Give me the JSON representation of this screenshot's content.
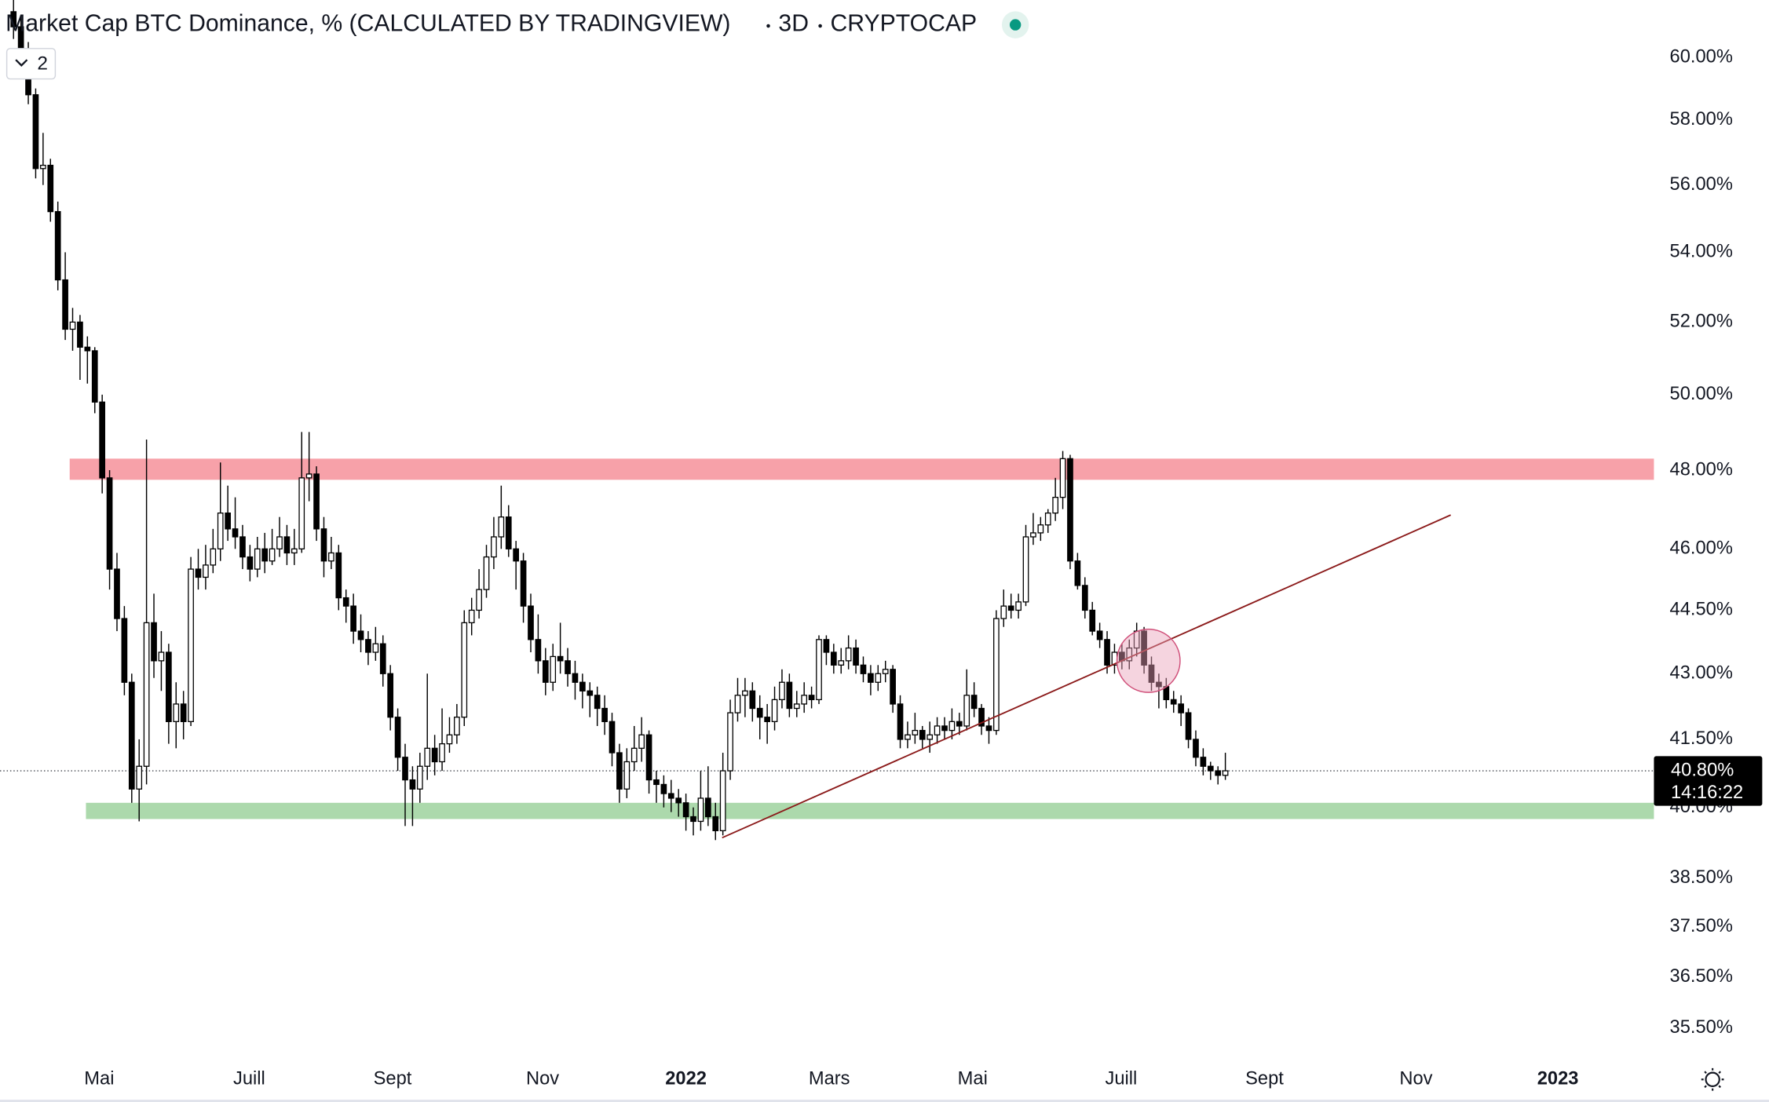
{
  "chart_data": {
    "type": "candlestick",
    "title": "Market Cap BTC Dominance, % (CALCULATED BY TRADINGVIEW)",
    "interval": "3D",
    "source": "CRYPTOCAP",
    "indicator_count": "2",
    "log_scale": true,
    "grid": false,
    "up_color": "#ffffff",
    "down_color": "#000000",
    "ylim": [
      34.89,
      61.89
    ],
    "yticks": [
      {
        "value": 60,
        "label": "60.00%"
      },
      {
        "value": 58,
        "label": "58.00%"
      },
      {
        "value": 56,
        "label": "56.00%"
      },
      {
        "value": 54,
        "label": "54.00%"
      },
      {
        "value": 52,
        "label": "52.00%"
      },
      {
        "value": 50,
        "label": "50.00%"
      },
      {
        "value": 48,
        "label": "48.00%"
      },
      {
        "value": 46,
        "label": "46.00%"
      },
      {
        "value": 44.5,
        "label": "44.50%"
      },
      {
        "value": 43,
        "label": "43.00%"
      },
      {
        "value": 41.5,
        "label": "41.50%"
      },
      {
        "value": 40,
        "label": "40.00%"
      },
      {
        "value": 38.5,
        "label": "38.50%"
      },
      {
        "value": 37.5,
        "label": "37.50%"
      },
      {
        "value": 36.5,
        "label": "36.50%"
      },
      {
        "value": 35.5,
        "label": "35.50%"
      }
    ],
    "xlim": [
      -1.83,
      222
    ],
    "xticks": [
      {
        "value": 11.6,
        "label": "Mai"
      },
      {
        "value": 31.9,
        "label": "Juill"
      },
      {
        "value": 51.3,
        "label": "Sept"
      },
      {
        "value": 71.6,
        "label": "Nov"
      },
      {
        "value": 91.0,
        "label": "2022",
        "major": true
      },
      {
        "value": 110.4,
        "label": "Mars"
      },
      {
        "value": 129.8,
        "label": "Mai"
      },
      {
        "value": 149.9,
        "label": "Juill"
      },
      {
        "value": 169.3,
        "label": "Sept"
      },
      {
        "value": 189.8,
        "label": "Nov"
      },
      {
        "value": 209.0,
        "label": "2023",
        "major": true
      }
    ],
    "ohlc": [
      [
        61.5,
        62,
        60.6,
        61.0
      ],
      [
        61.0,
        61.4,
        59.8,
        60.2
      ],
      [
        60.2,
        60.5,
        58.5,
        58.8
      ],
      [
        58.8,
        59.0,
        56.2,
        56.5
      ],
      [
        56.5,
        57.6,
        56.0,
        56.6
      ],
      [
        56.6,
        56.8,
        54.9,
        55.2
      ],
      [
        55.2,
        55.5,
        52.9,
        53.2
      ],
      [
        53.2,
        54.0,
        51.5,
        51.8
      ],
      [
        51.8,
        52.4,
        51.2,
        52.0
      ],
      [
        52.0,
        52.2,
        50.4,
        51.3
      ],
      [
        51.3,
        51.6,
        50.3,
        51.2
      ],
      [
        51.2,
        51.3,
        49.5,
        49.8
      ],
      [
        49.8,
        50.0,
        47.4,
        47.8
      ],
      [
        47.8,
        48.0,
        45.0,
        45.5
      ],
      [
        45.5,
        45.9,
        44.0,
        44.3
      ],
      [
        44.3,
        44.6,
        42.5,
        42.8
      ],
      [
        42.8,
        43.0,
        40.1,
        40.4
      ],
      [
        40.4,
        41.5,
        39.7,
        40.9
      ],
      [
        40.9,
        48.8,
        40.5,
        44.2
      ],
      [
        44.2,
        44.9,
        42.9,
        43.3
      ],
      [
        43.3,
        44.0,
        42.6,
        43.5
      ],
      [
        43.5,
        43.7,
        41.4,
        41.9
      ],
      [
        41.9,
        42.8,
        41.3,
        42.3
      ],
      [
        42.3,
        42.6,
        41.5,
        41.9
      ],
      [
        41.9,
        45.8,
        41.8,
        45.5
      ],
      [
        45.5,
        46.0,
        45.0,
        45.3
      ],
      [
        45.3,
        46.1,
        45.0,
        45.6
      ],
      [
        45.6,
        46.5,
        45.4,
        46.0
      ],
      [
        46.0,
        48.2,
        45.7,
        46.9
      ],
      [
        46.9,
        47.6,
        46.2,
        46.5
      ],
      [
        46.5,
        47.3,
        46.0,
        46.3
      ],
      [
        46.3,
        46.6,
        45.5,
        45.8
      ],
      [
        45.8,
        46.1,
        45.2,
        45.5
      ],
      [
        45.5,
        46.3,
        45.3,
        46.0
      ],
      [
        46.0,
        46.4,
        45.4,
        45.7
      ],
      [
        45.7,
        46.5,
        45.6,
        46.0
      ],
      [
        46.0,
        46.8,
        45.8,
        46.3
      ],
      [
        46.3,
        46.6,
        45.6,
        45.9
      ],
      [
        45.9,
        46.5,
        45.6,
        46.0
      ],
      [
        46.0,
        49.0,
        45.9,
        47.8
      ],
      [
        47.8,
        49.0,
        47.2,
        47.9
      ],
      [
        47.9,
        48.1,
        46.2,
        46.5
      ],
      [
        46.5,
        46.8,
        45.3,
        45.7
      ],
      [
        45.7,
        46.3,
        45.5,
        45.9
      ],
      [
        45.9,
        46.1,
        44.5,
        44.8
      ],
      [
        44.8,
        45.0,
        44.2,
        44.6
      ],
      [
        44.6,
        44.9,
        43.7,
        44.0
      ],
      [
        44.0,
        44.4,
        43.5,
        43.8
      ],
      [
        43.8,
        44.0,
        43.2,
        43.5
      ],
      [
        43.5,
        44.1,
        43.3,
        43.7
      ],
      [
        43.7,
        43.9,
        42.7,
        43.0
      ],
      [
        43.0,
        43.2,
        41.7,
        42.0
      ],
      [
        42.0,
        42.2,
        40.8,
        41.1
      ],
      [
        41.1,
        41.4,
        39.6,
        40.6
      ],
      [
        40.6,
        40.9,
        39.6,
        40.4
      ],
      [
        40.4,
        41.2,
        40.1,
        40.9
      ],
      [
        40.9,
        43.0,
        40.6,
        41.3
      ],
      [
        41.3,
        41.6,
        40.7,
        41.0
      ],
      [
        41.0,
        42.2,
        40.8,
        41.4
      ],
      [
        41.4,
        42.0,
        41.2,
        41.6
      ],
      [
        41.6,
        42.3,
        41.4,
        42.0
      ],
      [
        42.0,
        44.5,
        41.8,
        44.2
      ],
      [
        44.2,
        44.8,
        43.9,
        44.5
      ],
      [
        44.5,
        45.5,
        44.3,
        45.0
      ],
      [
        45.0,
        46.1,
        44.8,
        45.8
      ],
      [
        45.8,
        46.8,
        45.5,
        46.3
      ],
      [
        46.3,
        47.6,
        46.0,
        46.8
      ],
      [
        46.8,
        47.1,
        45.8,
        46.0
      ],
      [
        46.0,
        46.2,
        45.0,
        45.7
      ],
      [
        45.7,
        45.9,
        44.2,
        44.6
      ],
      [
        44.6,
        44.9,
        43.5,
        43.8
      ],
      [
        43.8,
        44.4,
        43.0,
        43.3
      ],
      [
        43.3,
        43.6,
        42.5,
        42.8
      ],
      [
        42.8,
        43.7,
        42.6,
        43.4
      ],
      [
        43.4,
        44.2,
        43.0,
        43.3
      ],
      [
        43.3,
        43.6,
        42.7,
        43.0
      ],
      [
        43.0,
        43.3,
        42.4,
        42.8
      ],
      [
        42.8,
        43.0,
        42.2,
        42.6
      ],
      [
        42.6,
        42.8,
        42.0,
        42.5
      ],
      [
        42.5,
        42.7,
        41.8,
        42.2
      ],
      [
        42.2,
        42.5,
        41.6,
        41.9
      ],
      [
        41.9,
        42.1,
        40.9,
        41.2
      ],
      [
        41.2,
        41.4,
        40.1,
        40.4
      ],
      [
        40.4,
        41.3,
        40.2,
        41.0
      ],
      [
        41.0,
        41.8,
        40.8,
        41.3
      ],
      [
        41.3,
        42.0,
        41.0,
        41.6
      ],
      [
        41.6,
        41.7,
        40.3,
        40.6
      ],
      [
        40.6,
        40.8,
        40.1,
        40.5
      ],
      [
        40.5,
        40.7,
        40.0,
        40.3
      ],
      [
        40.3,
        40.6,
        39.9,
        40.2
      ],
      [
        40.2,
        40.4,
        39.8,
        40.1
      ],
      [
        40.1,
        40.3,
        39.5,
        39.8
      ],
      [
        39.8,
        40.0,
        39.4,
        39.7
      ],
      [
        39.7,
        40.8,
        39.5,
        40.2
      ],
      [
        40.2,
        40.9,
        39.6,
        39.8
      ],
      [
        39.8,
        40.1,
        39.3,
        39.5
      ],
      [
        39.5,
        41.2,
        39.4,
        40.8
      ],
      [
        40.8,
        42.4,
        40.6,
        42.1
      ],
      [
        42.1,
        42.9,
        41.9,
        42.5
      ],
      [
        42.5,
        42.9,
        42.0,
        42.6
      ],
      [
        42.6,
        42.8,
        41.9,
        42.2
      ],
      [
        42.2,
        42.5,
        41.5,
        42.0
      ],
      [
        42.0,
        42.3,
        41.4,
        41.9
      ],
      [
        41.9,
        42.7,
        41.7,
        42.4
      ],
      [
        42.4,
        43.1,
        42.2,
        42.8
      ],
      [
        42.8,
        43.0,
        42.0,
        42.2
      ],
      [
        42.2,
        42.6,
        42.0,
        42.3
      ],
      [
        42.3,
        42.8,
        42.1,
        42.5
      ],
      [
        42.5,
        42.7,
        42.2,
        42.4
      ],
      [
        42.4,
        43.9,
        42.3,
        43.8
      ],
      [
        43.8,
        43.9,
        43.2,
        43.5
      ],
      [
        43.5,
        43.7,
        43.0,
        43.2
      ],
      [
        43.2,
        43.6,
        43.0,
        43.3
      ],
      [
        43.3,
        43.9,
        43.1,
        43.6
      ],
      [
        43.6,
        43.8,
        43.0,
        43.2
      ],
      [
        43.2,
        43.4,
        42.8,
        43.0
      ],
      [
        43.0,
        43.2,
        42.5,
        42.8
      ],
      [
        42.8,
        43.2,
        42.6,
        43.0
      ],
      [
        43.0,
        43.3,
        42.8,
        43.1
      ],
      [
        43.1,
        43.2,
        42.1,
        42.3
      ],
      [
        42.3,
        42.5,
        41.3,
        41.5
      ],
      [
        41.5,
        41.9,
        41.3,
        41.6
      ],
      [
        41.6,
        42.1,
        41.4,
        41.7
      ],
      [
        41.7,
        41.8,
        41.3,
        41.5
      ],
      [
        41.5,
        41.9,
        41.2,
        41.6
      ],
      [
        41.6,
        42.0,
        41.4,
        41.8
      ],
      [
        41.8,
        42.0,
        41.5,
        41.7
      ],
      [
        41.7,
        42.2,
        41.5,
        41.9
      ],
      [
        41.9,
        42.1,
        41.6,
        41.8
      ],
      [
        41.8,
        43.1,
        41.7,
        42.5
      ],
      [
        42.5,
        42.8,
        42.0,
        42.2
      ],
      [
        42.2,
        42.3,
        41.6,
        41.8
      ],
      [
        41.8,
        42.0,
        41.4,
        41.7
      ],
      [
        41.7,
        44.5,
        41.6,
        44.3
      ],
      [
        44.3,
        45.0,
        44.1,
        44.6
      ],
      [
        44.6,
        44.9,
        44.3,
        44.5
      ],
      [
        44.5,
        44.9,
        44.3,
        44.7
      ],
      [
        44.7,
        46.6,
        44.6,
        46.3
      ],
      [
        46.3,
        46.9,
        46.1,
        46.4
      ],
      [
        46.4,
        46.8,
        46.2,
        46.6
      ],
      [
        46.6,
        47.0,
        46.4,
        46.9
      ],
      [
        46.9,
        47.8,
        46.7,
        47.3
      ],
      [
        47.3,
        48.5,
        47.0,
        48.3
      ],
      [
        48.3,
        48.4,
        45.5,
        45.7
      ],
      [
        45.7,
        45.9,
        45.0,
        45.1
      ],
      [
        45.1,
        45.3,
        44.3,
        44.5
      ],
      [
        44.5,
        44.7,
        43.9,
        44.0
      ],
      [
        44.0,
        44.2,
        43.6,
        43.8
      ],
      [
        43.8,
        44.0,
        43.0,
        43.2
      ],
      [
        43.2,
        43.7,
        43.0,
        43.5
      ],
      [
        43.5,
        43.7,
        43.1,
        43.3
      ],
      [
        43.3,
        43.8,
        43.1,
        43.6
      ],
      [
        43.6,
        44.2,
        43.4,
        44.0
      ],
      [
        44.0,
        44.1,
        43.0,
        43.2
      ],
      [
        43.2,
        43.4,
        42.6,
        42.8
      ],
      [
        42.8,
        43.0,
        42.2,
        42.7
      ],
      [
        42.7,
        42.9,
        42.2,
        42.4
      ],
      [
        42.4,
        42.6,
        42.1,
        42.3
      ],
      [
        42.3,
        42.5,
        41.8,
        42.1
      ],
      [
        42.1,
        42.2,
        41.3,
        41.5
      ],
      [
        41.5,
        41.7,
        40.9,
        41.1
      ],
      [
        41.1,
        41.3,
        40.7,
        40.9
      ],
      [
        40.9,
        41.0,
        40.6,
        40.8
      ],
      [
        40.8,
        40.9,
        40.5,
        40.7
      ],
      [
        40.7,
        41.2,
        40.6,
        40.8
      ]
    ],
    "zones": [
      {
        "x": [
          7.6,
          222
        ],
        "from": 47.75,
        "to": 48.3,
        "color": "#f7a1a9"
      },
      {
        "x": [
          9.8,
          222
        ],
        "from": 39.75,
        "to": 40.1,
        "color": "#acd9ac"
      }
    ],
    "trendline": {
      "x": [
        95.9,
        194.5
      ],
      "y": [
        39.35,
        46.85
      ],
      "color": "#8b1a1a"
    },
    "marker": {
      "x": 153.6,
      "y": 43.3,
      "color": "#e8a0b8"
    },
    "last_price": {
      "value": 40.8,
      "label": "40.80%"
    },
    "countdown": "14:16:22"
  }
}
